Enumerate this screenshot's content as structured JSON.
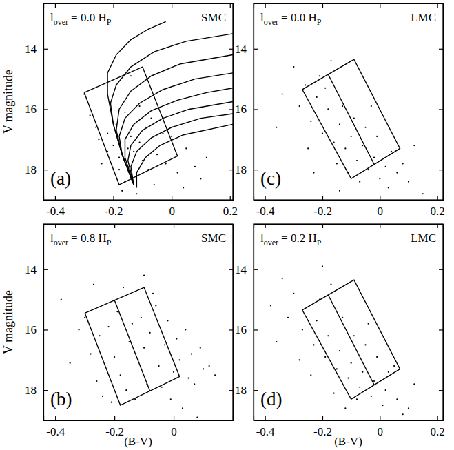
{
  "chart_data": [
    {
      "type": "scatter",
      "title": "SMC",
      "subtitle": [
        "l",
        "over",
        "= 0.0 H",
        "P"
      ],
      "annotations": [
        "(a)"
      ],
      "y_label": "V magnitude",
      "xlim": [
        -0.44,
        0.21
      ],
      "xticks": [
        -0.4,
        -0.2,
        0,
        0.2
      ],
      "ylim": [
        19,
        12.5
      ],
      "yticks": [
        14,
        16,
        18
      ],
      "series": [
        {
          "type": "scatter",
          "marker": "dot",
          "color": "#000000",
          "x": [
            -0.28,
            -0.22,
            -0.18,
            -0.15,
            -0.12,
            -0.1,
            -0.2,
            -0.16,
            -0.13,
            -0.08,
            -0.05,
            -0.02,
            0.02,
            0.05,
            0.08,
            -0.25,
            -0.19,
            -0.14,
            -0.11,
            -0.17,
            -0.21,
            -0.09,
            -0.06,
            0,
            -0.24,
            -0.3,
            -0.12,
            -0.16,
            -0.19,
            -0.07,
            -0.03,
            0.04,
            0.1,
            -0.14,
            -0.18,
            -0.22,
            -0.26,
            -0.11,
            -0.15,
            0.12
          ],
          "values": [
            16.2,
            16.8,
            17.6,
            17.9,
            18.2,
            17.7,
            17.2,
            18.4,
            17.4,
            18.0,
            17.5,
            17.8,
            18.1,
            17.3,
            17.9,
            17.0,
            16.5,
            16.9,
            17.1,
            18.7,
            15.8,
            16.6,
            18.5,
            16.9,
            17.8,
            15.5,
            18.8,
            16.1,
            15.2,
            16.3,
            16.8,
            18.6,
            18.3,
            14.9,
            18.0,
            17.4,
            16.6,
            15.9,
            17.3,
            17.6
          ]
        },
        {
          "type": "line",
          "line_style": "solid",
          "color": "#000000",
          "x": [
            -0.13,
            -0.17,
            -0.2,
            -0.22,
            -0.22,
            -0.19,
            -0.14,
            -0.08,
            -0.02
          ],
          "values": [
            18.5,
            17.5,
            16.5,
            15.5,
            14.8,
            14.2,
            13.7,
            13.35,
            13.1
          ]
        },
        {
          "type": "line",
          "line_style": "solid",
          "color": "#000000",
          "x": [
            -0.13,
            -0.17,
            -0.2,
            -0.21,
            -0.19,
            -0.14,
            -0.06,
            0.05,
            0.21
          ],
          "values": [
            18.5,
            17.5,
            16.5,
            15.8,
            15.2,
            14.6,
            14.1,
            13.75,
            13.5
          ]
        },
        {
          "type": "line",
          "line_style": "solid",
          "color": "#000000",
          "x": [
            -0.13,
            -0.17,
            -0.19,
            -0.18,
            -0.14,
            -0.07,
            0.03,
            0.21
          ],
          "values": [
            18.5,
            17.5,
            16.7,
            16.0,
            15.4,
            14.9,
            14.5,
            14.2
          ]
        },
        {
          "type": "line",
          "line_style": "solid",
          "color": "#000000",
          "x": [
            -0.13,
            -0.17,
            -0.18,
            -0.16,
            -0.11,
            -0.03,
            0.08,
            0.21
          ],
          "values": [
            18.5,
            17.5,
            16.9,
            16.3,
            15.8,
            15.35,
            15.0,
            14.8
          ]
        },
        {
          "type": "line",
          "line_style": "solid",
          "color": "#000000",
          "x": [
            -0.13,
            -0.16,
            -0.16,
            -0.13,
            -0.07,
            0.02,
            0.12,
            0.21
          ],
          "values": [
            18.5,
            17.6,
            17.0,
            16.5,
            16.05,
            15.7,
            15.45,
            15.3
          ]
        },
        {
          "type": "line",
          "line_style": "solid",
          "color": "#000000",
          "x": [
            -0.13,
            -0.15,
            -0.14,
            -0.1,
            -0.03,
            0.06,
            0.21
          ],
          "values": [
            18.5,
            17.7,
            17.2,
            16.7,
            16.3,
            16.0,
            15.75
          ]
        },
        {
          "type": "line",
          "line_style": "solid",
          "color": "#000000",
          "x": [
            -0.13,
            -0.14,
            -0.12,
            -0.07,
            0,
            0.1,
            0.21
          ],
          "values": [
            18.5,
            17.9,
            17.4,
            16.95,
            16.6,
            16.3,
            16.15
          ]
        },
        {
          "type": "line",
          "line_style": "solid",
          "color": "#000000",
          "x": [
            -0.12,
            -0.12,
            -0.09,
            -0.04,
            0.04,
            0.21
          ],
          "values": [
            18.6,
            18.1,
            17.6,
            17.2,
            16.85,
            16.5
          ]
        },
        {
          "type": "line",
          "line_style": "solid",
          "color": "#000000",
          "x": [
            -0.3,
            -0.1,
            0.02,
            -0.18,
            -0.3
          ],
          "values": [
            15.45,
            14.6,
            17.55,
            18.5,
            15.45
          ]
        }
      ]
    },
    {
      "type": "scatter",
      "title": "LMC",
      "subtitle": [
        "l",
        "over",
        "= 0.0 H",
        "P"
      ],
      "annotations": [
        "(c)"
      ],
      "xlim": [
        -0.44,
        0.22
      ],
      "xticks": [
        -0.4,
        -0.2,
        0,
        0.2
      ],
      "ylim": [
        19,
        12.5
      ],
      "yticks": [
        14,
        16,
        18
      ],
      "series": [
        {
          "type": "scatter",
          "marker": "dot",
          "color": "#000000",
          "x": [
            -0.3,
            -0.26,
            -0.22,
            -0.18,
            -0.14,
            -0.1,
            -0.06,
            -0.02,
            0.02,
            0.06,
            0.1,
            -0.28,
            -0.24,
            -0.2,
            -0.16,
            -0.12,
            -0.08,
            -0.04,
            0,
            0.04,
            0.08,
            -0.34,
            -0.19,
            -0.13,
            -0.09,
            -0.05,
            -0.01,
            0.03,
            -0.25,
            -0.15,
            -0.11,
            -0.07,
            -0.17,
            -0.21,
            0.12,
            -0.36,
            -0.03,
            0.15,
            -0.23,
            -0.14
          ],
          "values": [
            14.6,
            15.2,
            15.6,
            16.0,
            16.5,
            16.9,
            17.2,
            17.6,
            17.9,
            18.1,
            18.4,
            15.9,
            16.4,
            16.8,
            17.1,
            17.3,
            17.7,
            18.0,
            18.3,
            17.4,
            17.8,
            15.5,
            15.3,
            15.9,
            16.3,
            16.6,
            16.9,
            18.6,
            17.3,
            17.8,
            18.1,
            18.4,
            14.4,
            14.9,
            17.2,
            16.6,
            15.9,
            18.8,
            18.1,
            18.7
          ]
        },
        {
          "type": "line",
          "line_style": "solid",
          "color": "#000000",
          "x": [
            -0.27,
            -0.09,
            0.07,
            -0.1,
            -0.27
          ],
          "values": [
            15.35,
            14.35,
            17.3,
            18.3,
            15.35
          ]
        },
        {
          "type": "line",
          "line_style": "solid",
          "color": "#000000",
          "x": [
            -0.18,
            -0.02
          ],
          "values": [
            14.85,
            17.82
          ]
        }
      ]
    },
    {
      "type": "scatter",
      "title": "SMC",
      "subtitle": [
        "l",
        "over",
        "= 0.8 H",
        "P"
      ],
      "annotations": [
        "(b)"
      ],
      "y_label": "V magnitude",
      "x_label": "(B-V)",
      "xlim": [
        -0.44,
        0.2
      ],
      "xticks": [
        -0.4,
        -0.2,
        0
      ],
      "ylim": [
        19,
        12.5
      ],
      "yticks": [
        14,
        16,
        18
      ],
      "series": [
        {
          "type": "scatter",
          "marker": "dot",
          "color": "#000000",
          "x": [
            -0.3,
            -0.25,
            -0.2,
            -0.15,
            -0.1,
            -0.05,
            0,
            0.05,
            0.1,
            -0.28,
            -0.22,
            -0.18,
            -0.12,
            -0.08,
            -0.03,
            0.02,
            0.07,
            0.12,
            -0.35,
            -0.26,
            -0.19,
            -0.14,
            -0.09,
            -0.04,
            0.01,
            0.06,
            -0.24,
            -0.16,
            -0.11,
            -0.06,
            -0.01,
            0.04,
            0.09,
            -0.32,
            -0.21,
            -0.13,
            -0.07,
            0.03,
            -0.17,
            -0.02,
            0.14,
            -0.38,
            -0.27,
            -0.1,
            0.08
          ],
          "values": [
            15.6,
            16.2,
            16.9,
            16.4,
            16.6,
            17.2,
            17.4,
            17.6,
            17.3,
            16.8,
            15.9,
            17.5,
            17.0,
            16.1,
            16.5,
            17.0,
            17.8,
            17.2,
            17.1,
            17.7,
            15.4,
            15.8,
            17.8,
            17.9,
            16.3,
            16.8,
            18.2,
            18.0,
            15.6,
            15.2,
            18.3,
            16.0,
            16.6,
            16.0,
            18.4,
            18.3,
            14.8,
            18.6,
            14.6,
            15.7,
            17.5,
            15.0,
            14.5,
            14.2,
            18.9
          ]
        },
        {
          "type": "line",
          "line_style": "solid",
          "color": "#000000",
          "x": [
            -0.3,
            -0.1,
            0.02,
            -0.18,
            -0.3
          ],
          "values": [
            15.45,
            14.6,
            17.55,
            18.5,
            15.45
          ]
        },
        {
          "type": "line",
          "line_style": "solid",
          "color": "#000000",
          "x": [
            -0.2,
            -0.08
          ],
          "values": [
            15.02,
            18.03
          ]
        }
      ]
    },
    {
      "type": "scatter",
      "title": "LMC",
      "subtitle": [
        "l",
        "over",
        "= 0.2 H",
        "P"
      ],
      "annotations": [
        "(d)"
      ],
      "x_label": "(B-V)",
      "xlim": [
        -0.44,
        0.22
      ],
      "xticks": [
        -0.4,
        -0.2,
        0,
        0.2
      ],
      "ylim": [
        19,
        12.5
      ],
      "yticks": [
        14,
        16,
        18
      ],
      "series": [
        {
          "type": "scatter",
          "marker": "dot",
          "color": "#000000",
          "x": [
            -0.34,
            -0.3,
            -0.26,
            -0.22,
            -0.18,
            -0.14,
            -0.1,
            -0.06,
            -0.02,
            0.02,
            0.06,
            0.1,
            -0.32,
            -0.27,
            -0.23,
            -0.19,
            -0.15,
            -0.11,
            -0.07,
            -0.03,
            0.01,
            0.05,
            -0.38,
            -0.21,
            -0.13,
            -0.09,
            -0.05,
            -0.01,
            0.03,
            -0.24,
            -0.16,
            -0.12,
            -0.08,
            -0.28,
            -0.17,
            0.12,
            -0.2,
            0.08,
            -0.36,
            -0.04
          ],
          "values": [
            14.3,
            14.8,
            15.3,
            15.7,
            16.2,
            16.7,
            17.1,
            17.4,
            17.7,
            18.0,
            18.3,
            18.6,
            15.6,
            16.0,
            16.5,
            16.9,
            17.3,
            17.6,
            17.9,
            18.2,
            18.5,
            17.2,
            15.2,
            15.0,
            15.6,
            16.2,
            16.5,
            16.9,
            17.4,
            17.5,
            18.1,
            18.6,
            18.3,
            17.0,
            14.5,
            17.8,
            13.9,
            18.8,
            16.4,
            15.8
          ]
        },
        {
          "type": "line",
          "line_style": "solid",
          "color": "#000000",
          "x": [
            -0.27,
            -0.09,
            0.07,
            -0.1,
            -0.27
          ],
          "values": [
            15.35,
            14.35,
            17.3,
            18.3,
            15.35
          ]
        },
        {
          "type": "line",
          "line_style": "solid",
          "color": "#000000",
          "x": [
            -0.18,
            -0.02
          ],
          "values": [
            14.85,
            17.82
          ]
        }
      ]
    }
  ]
}
